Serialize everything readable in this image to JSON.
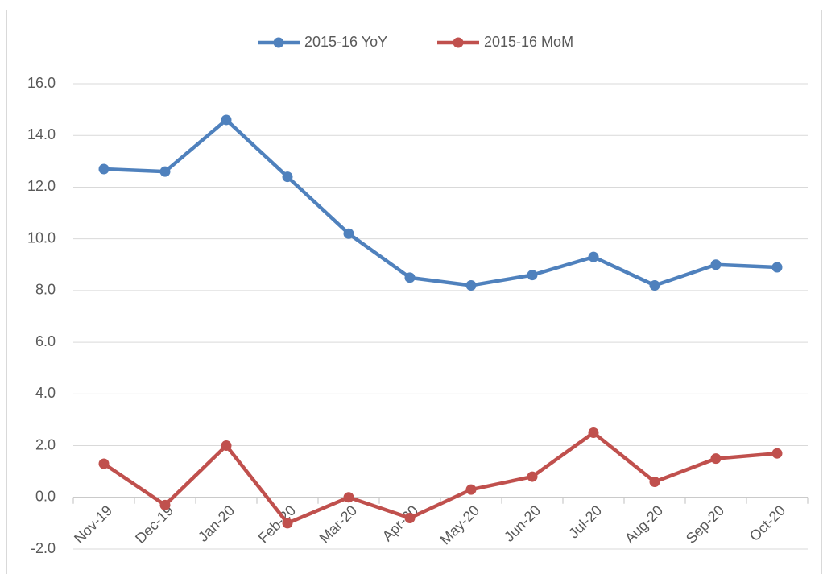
{
  "chart_data": {
    "type": "line",
    "categories": [
      "Nov-19",
      "Dec-19",
      "Jan-20",
      "Feb-20",
      "Mar-20",
      "Apr-20",
      "May-20",
      "Jun-20",
      "Jul-20",
      "Aug-20",
      "Sep-20",
      "Oct-20"
    ],
    "series": [
      {
        "name": "2015-16 YoY",
        "color": "#4f81bd",
        "values": [
          12.7,
          12.6,
          14.6,
          12.4,
          10.2,
          8.5,
          8.2,
          8.6,
          9.3,
          8.2,
          9.0,
          8.9
        ]
      },
      {
        "name": "2015-16 MoM",
        "color": "#c0504d",
        "values": [
          1.3,
          -0.3,
          2.0,
          -1.0,
          0.0,
          -0.8,
          0.3,
          0.8,
          2.5,
          0.6,
          1.5,
          1.7
        ]
      }
    ],
    "ylim": [
      -2,
      16
    ],
    "yticks": [
      {
        "value": -2,
        "label": "-2.0"
      },
      {
        "value": 0,
        "label": "0.0"
      },
      {
        "value": 2,
        "label": "2.0"
      },
      {
        "value": 4,
        "label": "4.0"
      },
      {
        "value": 6,
        "label": "6.0"
      },
      {
        "value": 8,
        "label": "8.0"
      },
      {
        "value": 10,
        "label": "10.0"
      },
      {
        "value": 12,
        "label": "12.0"
      },
      {
        "value": 14,
        "label": "14.0"
      },
      {
        "value": 16,
        "label": "16.0"
      }
    ],
    "grid": true,
    "legend": "top"
  }
}
